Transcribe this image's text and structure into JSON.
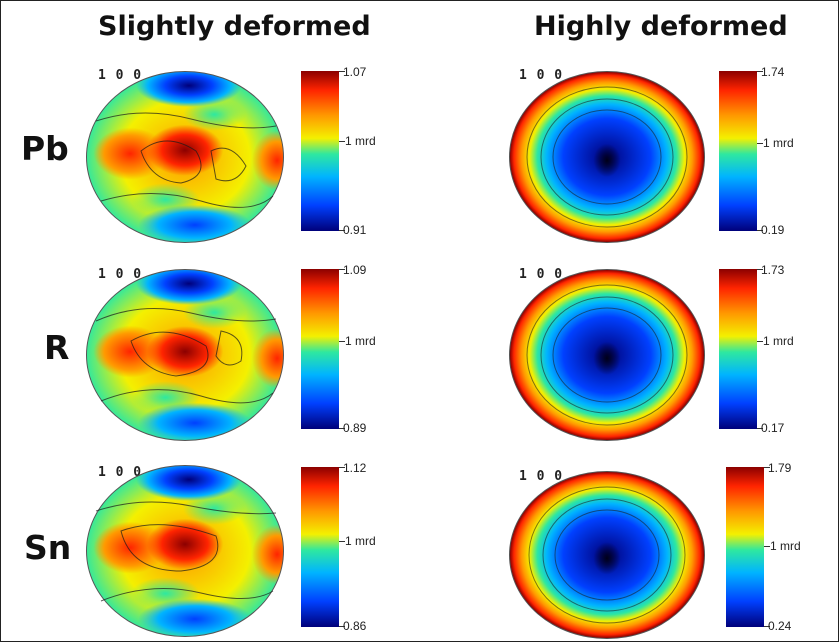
{
  "columns": {
    "left": "Slightly deformed",
    "right": "Highly deformed"
  },
  "direction_label": "1 0 0",
  "mid_label": "1 mrd",
  "rows": [
    {
      "label": "Pb",
      "slight": {
        "max": "1.07",
        "min": "0.91"
      },
      "high": {
        "max": "1.74",
        "min": "0.19"
      }
    },
    {
      "label": "R",
      "slight": {
        "max": "1.09",
        "min": "0.89"
      },
      "high": {
        "max": "1.73",
        "min": "0.17"
      }
    },
    {
      "label": "Sn",
      "slight": {
        "max": "1.12",
        "min": "0.86"
      },
      "high": {
        "max": "1.79",
        "min": "0.24"
      }
    }
  ],
  "colors": {
    "dark_red": "#8b0000",
    "red": "#ff2400",
    "orange": "#ff9a00",
    "yellow": "#f4f000",
    "cyan": "#2ee8a0",
    "light_blue": "#00b4ff",
    "blue": "#0040ff",
    "navy": "#00007a"
  }
}
